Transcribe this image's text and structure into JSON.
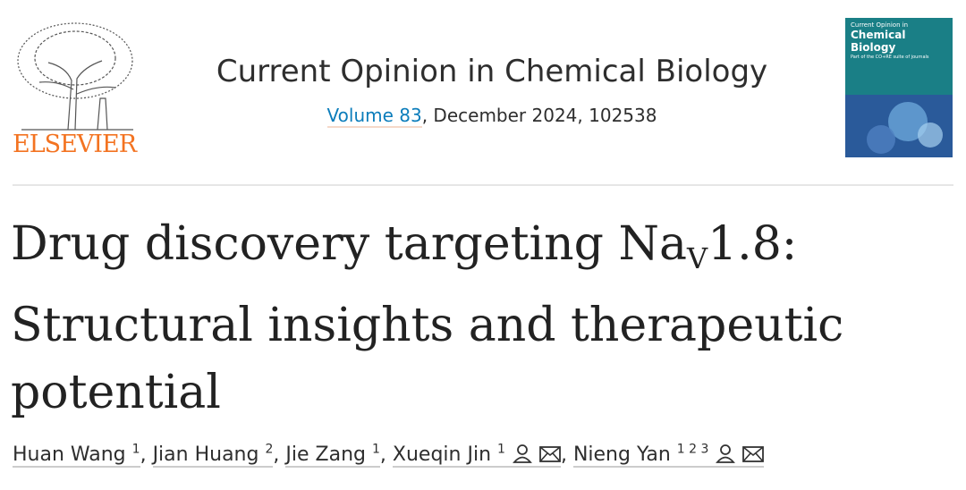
{
  "header": {
    "publisher": "ELSEVIER",
    "journal": "Current Opinion in Chemical Biology",
    "volume_link": "Volume 83",
    "citation": ", December 2024, 102538",
    "cover": {
      "line1": "Current Opinion in",
      "line2": "Chemical Biology",
      "line3": "Part of the CO+RE suite of journals"
    }
  },
  "title": {
    "before_subscript": "Drug discovery targeting Na",
    "subscript": "V",
    "after_subscript": "1.8:",
    "line2": "Structural insights and therapeutic",
    "line3": "potential"
  },
  "authors": {
    "separator": ",",
    "list": [
      {
        "name": "Huan Wang",
        "affiliations": [
          "1"
        ]
      },
      {
        "name": "Jian Huang",
        "affiliations": [
          "2"
        ]
      },
      {
        "name": "Jie Zang",
        "affiliations": [
          "1"
        ]
      },
      {
        "name": "Xueqin Jin",
        "affiliations": [
          "1"
        ],
        "icons": true
      },
      {
        "name": "Nieng Yan",
        "affiliations": [
          "1",
          "2",
          "3"
        ],
        "icons": true
      }
    ]
  }
}
